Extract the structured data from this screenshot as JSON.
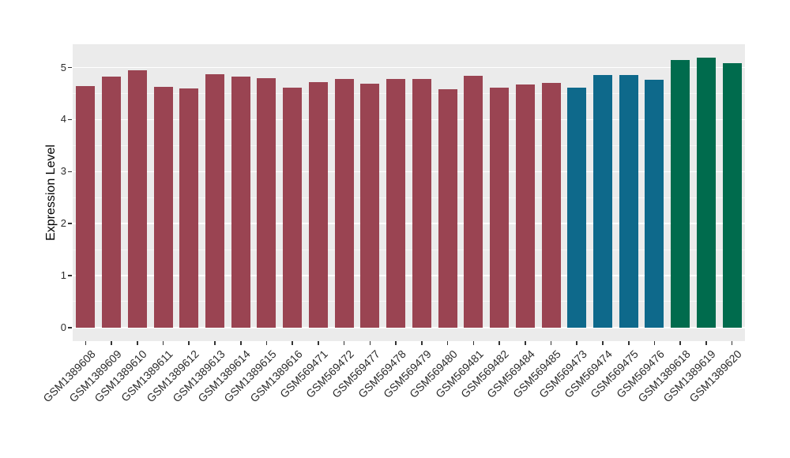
{
  "chart_data": {
    "type": "bar",
    "title": "",
    "xlabel": "",
    "ylabel": "Expression Level",
    "categories": [
      "GSM1389608",
      "GSM1389609",
      "GSM1389610",
      "GSM1389611",
      "GSM1389612",
      "GSM1389613",
      "GSM1389614",
      "GSM1389615",
      "GSM1389616",
      "GSM569471",
      "GSM569472",
      "GSM569477",
      "GSM569478",
      "GSM569479",
      "GSM569480",
      "GSM569481",
      "GSM569482",
      "GSM569484",
      "GSM569485",
      "GSM569473",
      "GSM569474",
      "GSM569475",
      "GSM569476",
      "GSM1389618",
      "GSM1389619",
      "GSM1389620"
    ],
    "values": [
      4.64,
      4.82,
      4.95,
      4.63,
      4.6,
      4.87,
      4.83,
      4.8,
      4.61,
      4.72,
      4.78,
      4.69,
      4.78,
      4.78,
      4.59,
      4.85,
      4.61,
      4.68,
      4.7,
      4.62,
      4.86,
      4.86,
      4.77,
      5.14,
      5.19,
      5.08
    ],
    "bar_colors": [
      "#9A4452",
      "#9A4452",
      "#9A4452",
      "#9A4452",
      "#9A4452",
      "#9A4452",
      "#9A4452",
      "#9A4452",
      "#9A4452",
      "#9A4452",
      "#9A4452",
      "#9A4452",
      "#9A4452",
      "#9A4452",
      "#9A4452",
      "#9A4452",
      "#9A4452",
      "#9A4452",
      "#9A4452",
      "#0E698B",
      "#0E698B",
      "#0E698B",
      "#0E698B",
      "#006B4D",
      "#006B4D",
      "#006B4D"
    ],
    "yticks": [
      0,
      1,
      2,
      3,
      4,
      5
    ],
    "yticks_minor": [
      0.5,
      1.5,
      2.5,
      3.5,
      4.5
    ],
    "ylim": [
      0,
      5.19
    ],
    "display_ylim": [
      -0.26,
      5.45
    ],
    "grid": true,
    "legend": "none",
    "panel_bg": "#EBEBEB",
    "grid_major_color": "#FFFFFF",
    "axis_text_color": "#2b2b2b",
    "bar_group_colors": {
      "group1": "#9A4452",
      "group2": "#0E698B",
      "group3": "#006B4D"
    }
  }
}
